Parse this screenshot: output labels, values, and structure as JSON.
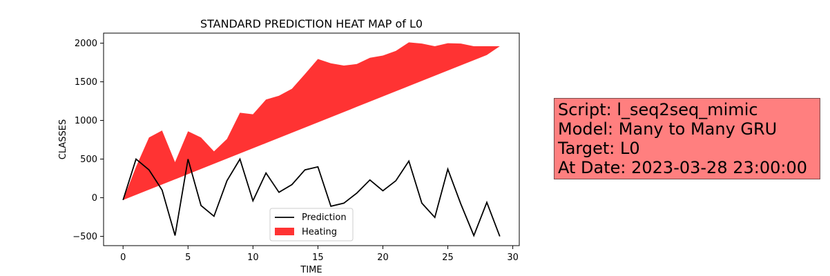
{
  "chart_data": {
    "type": "area",
    "title": "STANDARD PREDICTION HEAT MAP of L0",
    "xlabel": "TIME",
    "ylabel": "CLASSES",
    "xlim": [
      -1.5,
      30.5
    ],
    "ylim": [
      -620,
      2130
    ],
    "x_ticks": [
      0,
      5,
      10,
      15,
      20,
      25,
      30
    ],
    "y_ticks": [
      -500,
      0,
      500,
      1000,
      1500,
      2000
    ],
    "x": [
      0,
      1,
      2,
      3,
      4,
      5,
      6,
      7,
      8,
      9,
      10,
      11,
      12,
      13,
      14,
      15,
      16,
      17,
      18,
      19,
      20,
      21,
      22,
      23,
      24,
      25,
      26,
      27,
      28,
      29
    ],
    "series": [
      {
        "name": "Prediction",
        "kind": "line",
        "color": "#000000",
        "values": [
          -30,
          500,
          360,
          100,
          -490,
          500,
          -100,
          -240,
          220,
          500,
          -40,
          320,
          70,
          170,
          360,
          400,
          -110,
          -70,
          60,
          230,
          90,
          220,
          475,
          -70,
          -255,
          370,
          -80,
          -490,
          -60,
          -500
        ]
      },
      {
        "name": "Heating",
        "kind": "band",
        "color": "#ff0000",
        "upper": [
          -30,
          400,
          780,
          870,
          460,
          860,
          780,
          600,
          760,
          1100,
          1080,
          1270,
          1320,
          1410,
          1600,
          1795,
          1740,
          1710,
          1730,
          1810,
          1840,
          1900,
          2010,
          1995,
          1960,
          2000,
          1995,
          1960,
          1960,
          1960
        ],
        "lower": [
          -30,
          37,
          104,
          171,
          238,
          305,
          372,
          439,
          506,
          573,
          640,
          707,
          774,
          841,
          908,
          975,
          1042,
          1109,
          1176,
          1243,
          1310,
          1377,
          1444,
          1511,
          1578,
          1645,
          1712,
          1779,
          1846,
          1960
        ]
      }
    ],
    "legend": {
      "placement": "lower-center"
    },
    "grid": false
  },
  "info": {
    "script": "Script: l_seq2seq_mimic",
    "model": "Model: Many to Many GRU",
    "target": "Target: L0",
    "date": "At Date: 2023-03-28 23:00:00"
  }
}
